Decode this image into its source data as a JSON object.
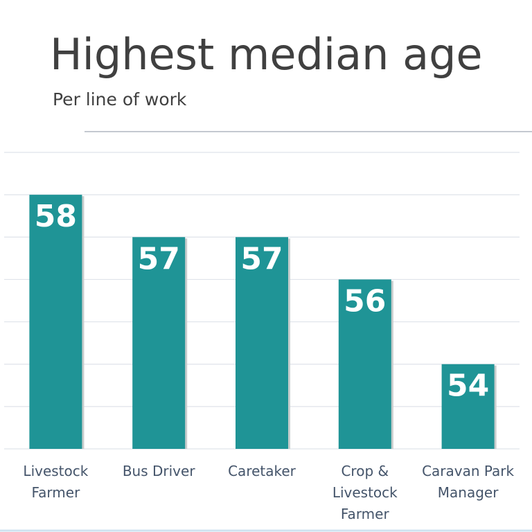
{
  "chart_data": {
    "type": "bar",
    "title": "Highest median age",
    "subtitle": "Per line of work",
    "categories": [
      "Livestock Farmer",
      "Bus Driver",
      "Caretaker",
      "Crop & Livestock Farmer",
      "Caravan Park Manager"
    ],
    "values": [
      58,
      57,
      57,
      56,
      54
    ],
    "color": "#1f9496",
    "ylim": [
      52,
      59
    ],
    "yticks": [
      52,
      53,
      54,
      55,
      56,
      57,
      58,
      59
    ],
    "grid": true
  }
}
